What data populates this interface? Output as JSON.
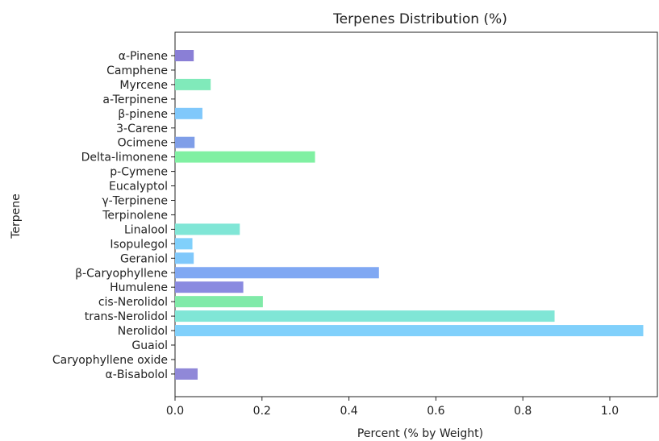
{
  "chart_data": {
    "type": "bar",
    "orientation": "horizontal",
    "title": "Terpenes Distribution (%)",
    "xlabel": "Percent (% by Weight)",
    "ylabel": "Terpene",
    "xlim": [
      0,
      1.08
    ],
    "xticks": [
      "0.0",
      "0.2",
      "0.4",
      "0.6",
      "0.8",
      "1.0"
    ],
    "grid": false,
    "categories": [
      "α-Pinene",
      "Camphene",
      "Myrcene",
      "a-Terpinene",
      "β-pinene",
      "3-Carene",
      "Ocimene",
      "Delta-limonene",
      "p-Cymene",
      "Eucalyptol",
      "γ-Terpinene",
      "Terpinolene",
      "Linalool",
      "Isopulegol",
      "Geraniol",
      "β-Caryophyllene",
      "Humulene",
      "cis-Nerolidol",
      "trans-Nerolidol",
      "Nerolidol",
      "Guaiol",
      "Caryophyllene oxide",
      "α-Bisabolol"
    ],
    "values": [
      0.043,
      0,
      0.082,
      0,
      0.063,
      0,
      0.045,
      0.322,
      0,
      0,
      0,
      0,
      0.149,
      0.04,
      0.043,
      0.469,
      0.157,
      0.202,
      0.873,
      1.077,
      0,
      0,
      0.052
    ],
    "colors": [
      "#8a7fd6",
      "#c2c5ee",
      "#80eaba",
      "#c5efe2",
      "#80c8fb",
      "#c2c5ee",
      "#7f9ee8",
      "#80f0a2",
      "#c5efe2",
      "#c2c5ee",
      "#c2c5ee",
      "#c2c5ee",
      "#80e6d6",
      "#80d0fb",
      "#80c8fb",
      "#80a8f3",
      "#8a8ae0",
      "#80eaa8",
      "#80e6d6",
      "#80d0fb",
      "#c2c5ee",
      "#c2c5ee",
      "#9088d8"
    ]
  }
}
